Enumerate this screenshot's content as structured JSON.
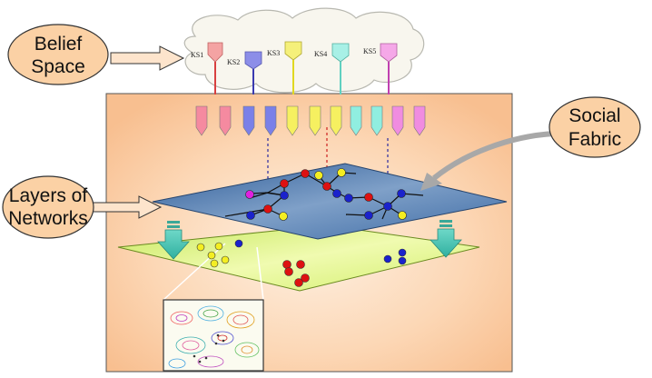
{
  "callouts": {
    "belief_space": [
      "Belief",
      "Space"
    ],
    "social_fabric": [
      "Social",
      "Fabric"
    ],
    "layers_of_networks": [
      "Layers of",
      "Networks"
    ]
  },
  "knowledge_sources": [
    {
      "label": "KS1",
      "color": "#f4a3a3"
    },
    {
      "label": "KS2",
      "color": "#8c8ee8"
    },
    {
      "label": "KS3",
      "color": "#f5f07a"
    },
    {
      "label": "KS4",
      "color": "#a8f0e6"
    },
    {
      "label": "KS5",
      "color": "#f5a8e8"
    }
  ],
  "colors": {
    "callout_fill": "#fbd1a5",
    "panel": "#fbcaa0",
    "network_plane": "#5a7fb0",
    "population_plane": "#d8f07a",
    "node_red": "#dd1111",
    "node_blue": "#1a22cc",
    "node_yellow": "#f4ee22",
    "node_magenta": "#e020e0"
  }
}
